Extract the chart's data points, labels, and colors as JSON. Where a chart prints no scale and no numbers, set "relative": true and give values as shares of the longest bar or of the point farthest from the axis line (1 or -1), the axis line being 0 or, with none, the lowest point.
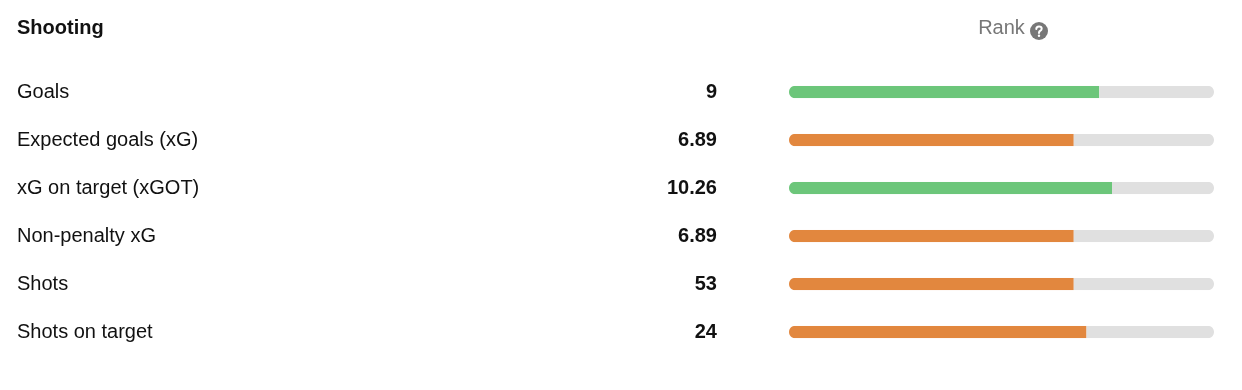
{
  "chart_data": {
    "type": "bar",
    "orientation": "horizontal",
    "stacked": true,
    "relative": true,
    "title": "Shooting",
    "xlabel": "Rank",
    "categories": [
      "Goals",
      "Expected goals (xG)",
      "xG on target (xGOT)",
      "Non-penalty xG",
      "Shots",
      "Shots on target"
    ],
    "series": [
      {
        "colors": [
          "#6cc67a",
          "#e2873e",
          "#6cc67a",
          "#e2873e",
          "#e2873e",
          "#e2873e"
        ],
        "values": [
          0.73,
          0.67,
          0.76,
          0.67,
          0.67,
          0.7
        ]
      },
      {
        "color": "#e0e0e0",
        "values": [
          0.27,
          0.33,
          0.24,
          0.33,
          0.33,
          0.3
        ]
      }
    ],
    "annotations": [
      "9",
      "6.89",
      "10.26",
      "6.89",
      "53",
      "24"
    ]
  }
}
